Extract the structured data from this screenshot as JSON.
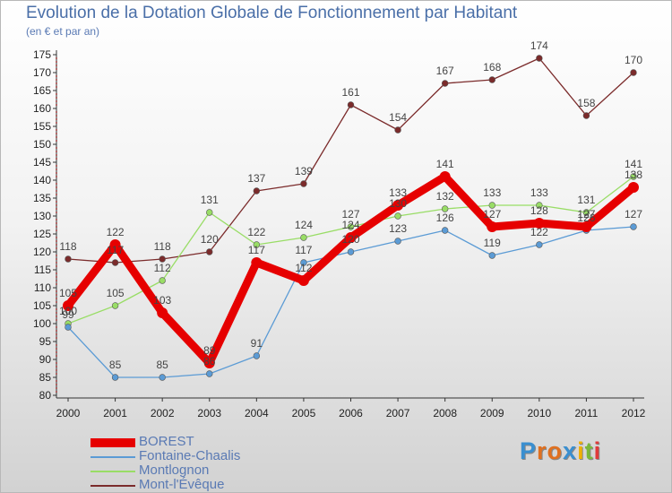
{
  "chart_data": {
    "type": "line",
    "title": "Evolution de la Dotation Globale de Fonctionnement par Habitant",
    "subtitle": "(en € et par an)",
    "xlabel": "",
    "ylabel": "",
    "categories": [
      "2000",
      "2001",
      "2002",
      "2003",
      "2004",
      "2005",
      "2006",
      "2007",
      "2008",
      "2009",
      "2010",
      "2011",
      "2012"
    ],
    "ylim": [
      80,
      175
    ],
    "yticks": [
      80,
      85,
      90,
      95,
      100,
      105,
      110,
      115,
      120,
      125,
      130,
      135,
      140,
      145,
      150,
      155,
      160,
      165,
      170,
      175
    ],
    "legend_position": "bottom-left",
    "series": [
      {
        "name": "BOREST",
        "color": "#e60000",
        "values": [
          105,
          122,
          103,
          89,
          117,
          112,
          124,
          133,
          141,
          127,
          128,
          127,
          138
        ]
      },
      {
        "name": "Fontaine-Chaalis",
        "color": "#5b9bd5",
        "values": [
          99,
          85,
          85,
          86,
          91,
          117,
          120,
          123,
          126,
          119,
          122,
          126,
          127
        ]
      },
      {
        "name": "Montlognon",
        "color": "#99dd66",
        "values": [
          100,
          105,
          112,
          131,
          122,
          124,
          127,
          130,
          132,
          133,
          133,
          131,
          141
        ]
      },
      {
        "name": "Mont-l'Évêque",
        "color": "#7b2b2b",
        "values": [
          118,
          117,
          118,
          120,
          137,
          139,
          161,
          154,
          167,
          168,
          174,
          158,
          170
        ]
      }
    ]
  },
  "logo": {
    "letters": [
      "P",
      "r",
      "o",
      "x",
      "i",
      "t",
      "i"
    ],
    "colors": [
      "#3a8fd0",
      "#e07020",
      "#e07020",
      "#3a8fd0",
      "#f0b000",
      "#7ab83a",
      "#e03a3a"
    ]
  }
}
